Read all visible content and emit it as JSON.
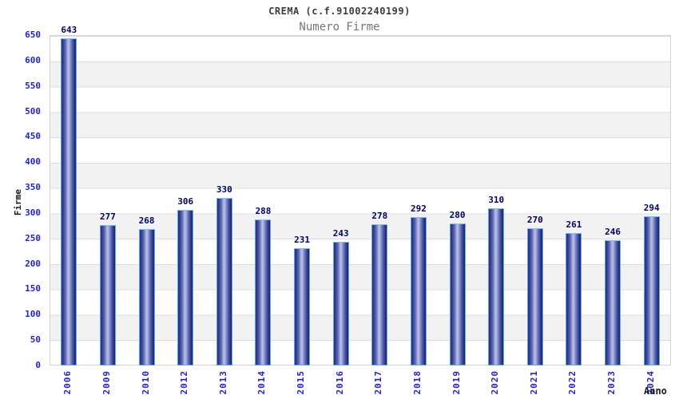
{
  "chart_data": {
    "type": "bar",
    "title": "CREMA (c.f.91002240199)",
    "subtitle": "Numero Firme",
    "xlabel": "Anno",
    "ylabel": "Firme",
    "categories": [
      "2006",
      "2009",
      "2010",
      "2012",
      "2013",
      "2014",
      "2015",
      "2016",
      "2017",
      "2018",
      "2019",
      "2020",
      "2021",
      "2022",
      "2023",
      "2024"
    ],
    "values": [
      643,
      277,
      268,
      306,
      330,
      288,
      231,
      243,
      278,
      292,
      280,
      310,
      270,
      261,
      246,
      294
    ],
    "ylim": [
      0,
      650
    ],
    "ytick_step": 50,
    "grid": true,
    "legend": "none",
    "layout_hints": {
      "bands": "alternating white / light-gray horizontal bands every 50 units",
      "bar_style": "vertical cylinder gradient, light-blue outline",
      "x_tick_rotation": -90
    },
    "colors": {
      "bar_dark": "#272d7d",
      "bar_highlight": "#b9c0ea",
      "bar_border": "#58a7f8",
      "axis_tick_blue": "#2222cc",
      "value_label_navy": "#000066",
      "band_gray": "#f2f2f2",
      "gridline_gray": "#dcdcdc",
      "title_gray": "#3c3c3c",
      "subtitle_gray": "#757575"
    }
  }
}
